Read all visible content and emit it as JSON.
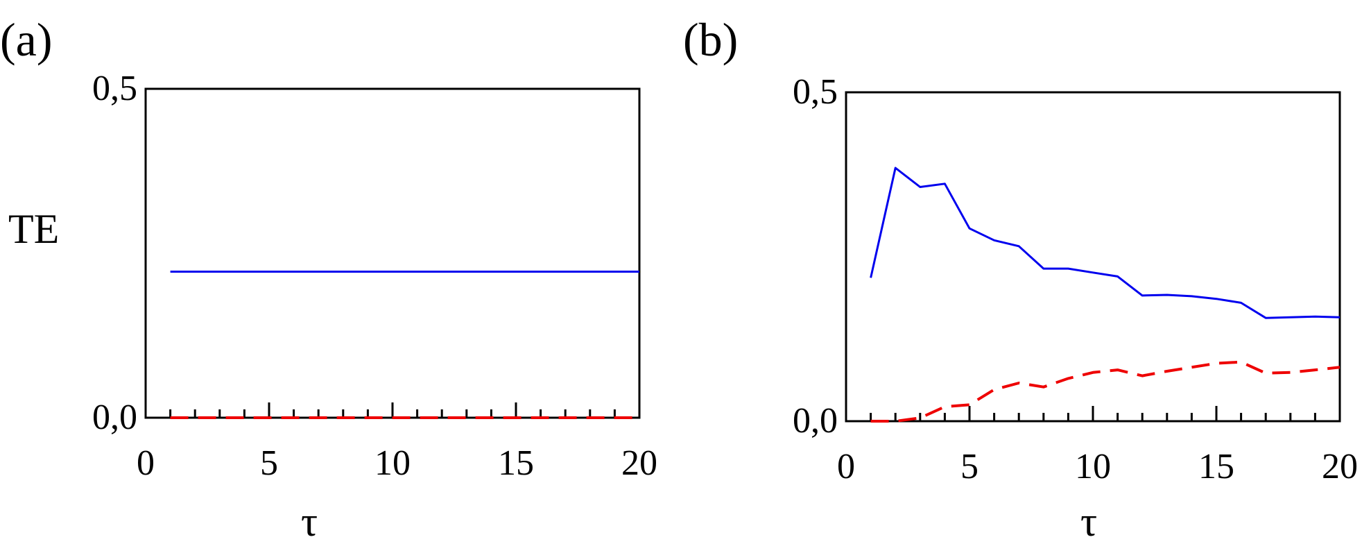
{
  "chart_data": [
    {
      "type": "line",
      "panel_label": "(a)",
      "ylabel": "TE",
      "xlabel": "τ",
      "xlim": [
        0,
        20
      ],
      "ylim": [
        0,
        0.5
      ],
      "x_ticks": [
        "0",
        "5",
        "10",
        "15",
        "20"
      ],
      "y_ticks": [
        "0,0",
        "0,5"
      ],
      "x": [
        1,
        2,
        3,
        4,
        5,
        6,
        7,
        8,
        9,
        10,
        11,
        12,
        13,
        14,
        15,
        16,
        17,
        18,
        19,
        20
      ],
      "series": [
        {
          "color": "#0000ee",
          "style": "solid",
          "values": [
            0.222,
            0.222,
            0.222,
            0.222,
            0.222,
            0.222,
            0.222,
            0.222,
            0.222,
            0.222,
            0.222,
            0.222,
            0.222,
            0.222,
            0.222,
            0.222,
            0.222,
            0.222,
            0.222,
            0.222
          ]
        },
        {
          "color": "#ee0000",
          "style": "dashed",
          "values": [
            0,
            0,
            0,
            0,
            0,
            0,
            0,
            0,
            0,
            0,
            0,
            0,
            0,
            0,
            0,
            0,
            0,
            0,
            0,
            0
          ]
        }
      ]
    },
    {
      "type": "line",
      "panel_label": "(b)",
      "ylabel": "",
      "xlabel": "τ",
      "xlim": [
        0,
        20
      ],
      "ylim": [
        0,
        0.5
      ],
      "x_ticks": [
        "0",
        "5",
        "10",
        "15",
        "20"
      ],
      "y_ticks": [
        "0,0",
        "0,5"
      ],
      "x": [
        1,
        2,
        3,
        4,
        5,
        6,
        7,
        8,
        9,
        10,
        11,
        12,
        13,
        14,
        15,
        16,
        17,
        18,
        19,
        20
      ],
      "series": [
        {
          "color": "#0000ee",
          "style": "solid",
          "values": [
            0.218,
            0.385,
            0.356,
            0.361,
            0.293,
            0.275,
            0.266,
            0.232,
            0.232,
            0.226,
            0.22,
            0.191,
            0.192,
            0.19,
            0.186,
            0.18,
            0.157,
            0.158,
            0.159,
            0.158
          ]
        },
        {
          "color": "#ee0000",
          "style": "dashed",
          "values": [
            0.0,
            0.0,
            0.005,
            0.022,
            0.025,
            0.048,
            0.058,
            0.052,
            0.065,
            0.074,
            0.078,
            0.069,
            0.076,
            0.082,
            0.088,
            0.09,
            0.073,
            0.074,
            0.078,
            0.082
          ]
        }
      ]
    }
  ]
}
